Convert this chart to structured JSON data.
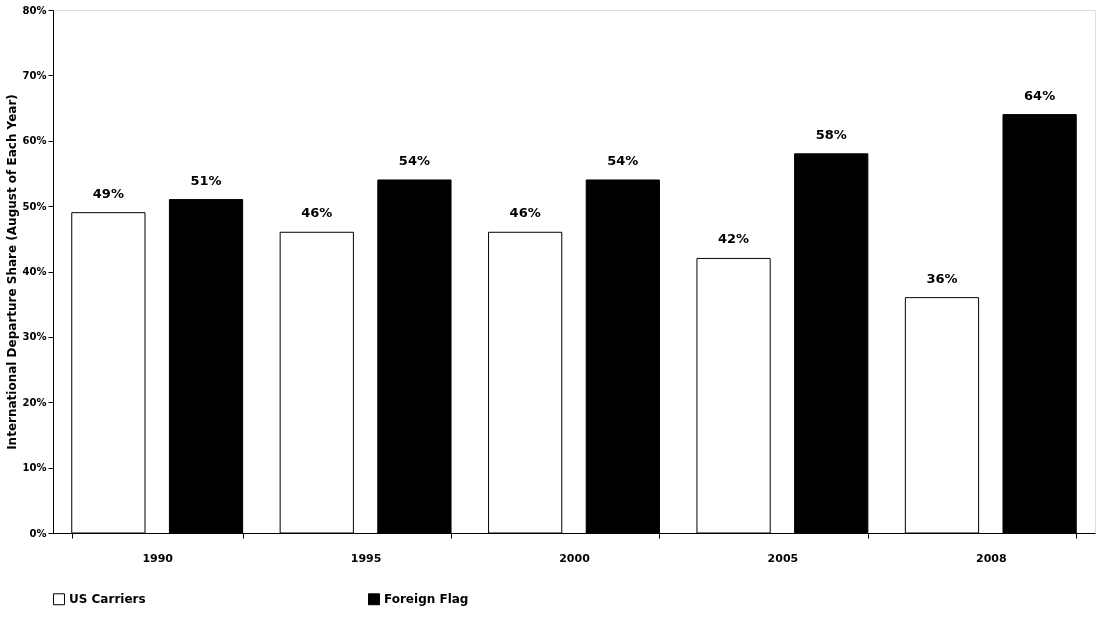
{
  "chart_data": {
    "type": "bar",
    "ylabel": "International Departure Share (August of Each Year)",
    "categories": [
      "1990",
      "1995",
      "2000",
      "2005",
      "2008"
    ],
    "series": [
      {
        "name": "US Carriers",
        "color": "#ffffff",
        "values": [
          49,
          46,
          46,
          42,
          36
        ],
        "value_labels": [
          "49%",
          "46%",
          "46%",
          "42%",
          "36%"
        ]
      },
      {
        "name": "Foreign Flag",
        "color": "#000000",
        "values": [
          51,
          54,
          54,
          58,
          64
        ],
        "value_labels": [
          "51%",
          "54%",
          "54%",
          "58%",
          "64%"
        ]
      }
    ],
    "ylim": [
      0,
      80
    ],
    "yticks": [
      {
        "value": 0,
        "label": "0%"
      },
      {
        "value": 10,
        "label": "10%"
      },
      {
        "value": 20,
        "label": "20%"
      },
      {
        "value": 30,
        "label": "30%"
      },
      {
        "value": 40,
        "label": "40%"
      },
      {
        "value": 50,
        "label": "50%"
      },
      {
        "value": 60,
        "label": "60%"
      },
      {
        "value": 70,
        "label": "70%"
      },
      {
        "value": 80,
        "label": "80%"
      }
    ],
    "grid": false,
    "legend": "bottom"
  }
}
